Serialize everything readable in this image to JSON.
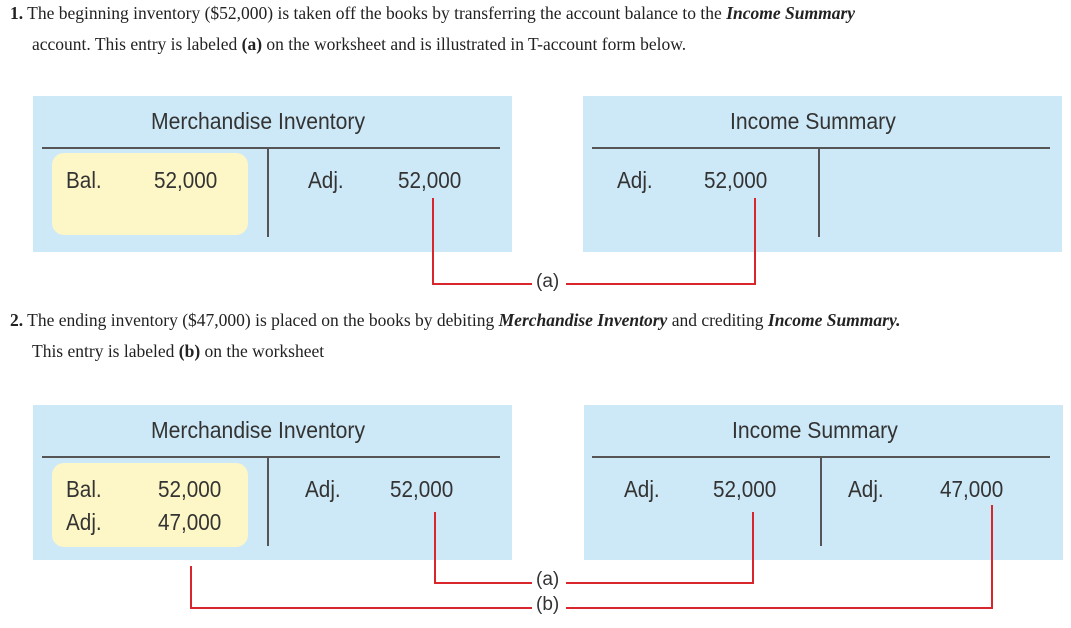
{
  "para1": {
    "num": "1.",
    "t1": " The beginning inventory ($52,000) is taken off the books by transferring the account balance to the ",
    "em": "Income Summary",
    "t2": "account. This entry is labeled ",
    "tag": "(a)",
    "t3": " on the worksheet  and is illustrated in T-account form below."
  },
  "para2": {
    "num": "2.",
    "t1": " The ending inventory ($47,000) is placed on the books by debiting ",
    "em1": "Merchandise Inventory",
    "t2": " and crediting ",
    "em2": "Income Summary.",
    "t3": "This entry is labeled ",
    "tag": "(b)",
    "t4": " on the worksheet"
  },
  "section1": {
    "merch": {
      "title": "Merchandise Inventory",
      "debit": {
        "label": "Bal.",
        "value": "52,000"
      },
      "credit": {
        "label": "Adj.",
        "value": "52,000"
      }
    },
    "income": {
      "title": "Income Summary",
      "debit": {
        "label": "Adj.",
        "value": "52,000"
      }
    },
    "connector_label": "(a)"
  },
  "section2": {
    "merch": {
      "title": "Merchandise Inventory",
      "debit": [
        {
          "label": "Bal.",
          "value": "52,000"
        },
        {
          "label": "Adj.",
          "value": "47,000"
        }
      ],
      "credit": {
        "label": "Adj.",
        "value": "52,000"
      }
    },
    "income": {
      "title": "Income Summary",
      "debit": {
        "label": "Adj.",
        "value": "52,000"
      },
      "credit": {
        "label": "Adj.",
        "value": "47,000"
      }
    },
    "connector_label_a": "(a)",
    "connector_label_b": "(b)"
  },
  "colors": {
    "panel": "#cde8f6",
    "highlight": "#fdf6c6",
    "connector": "#d9262c"
  }
}
